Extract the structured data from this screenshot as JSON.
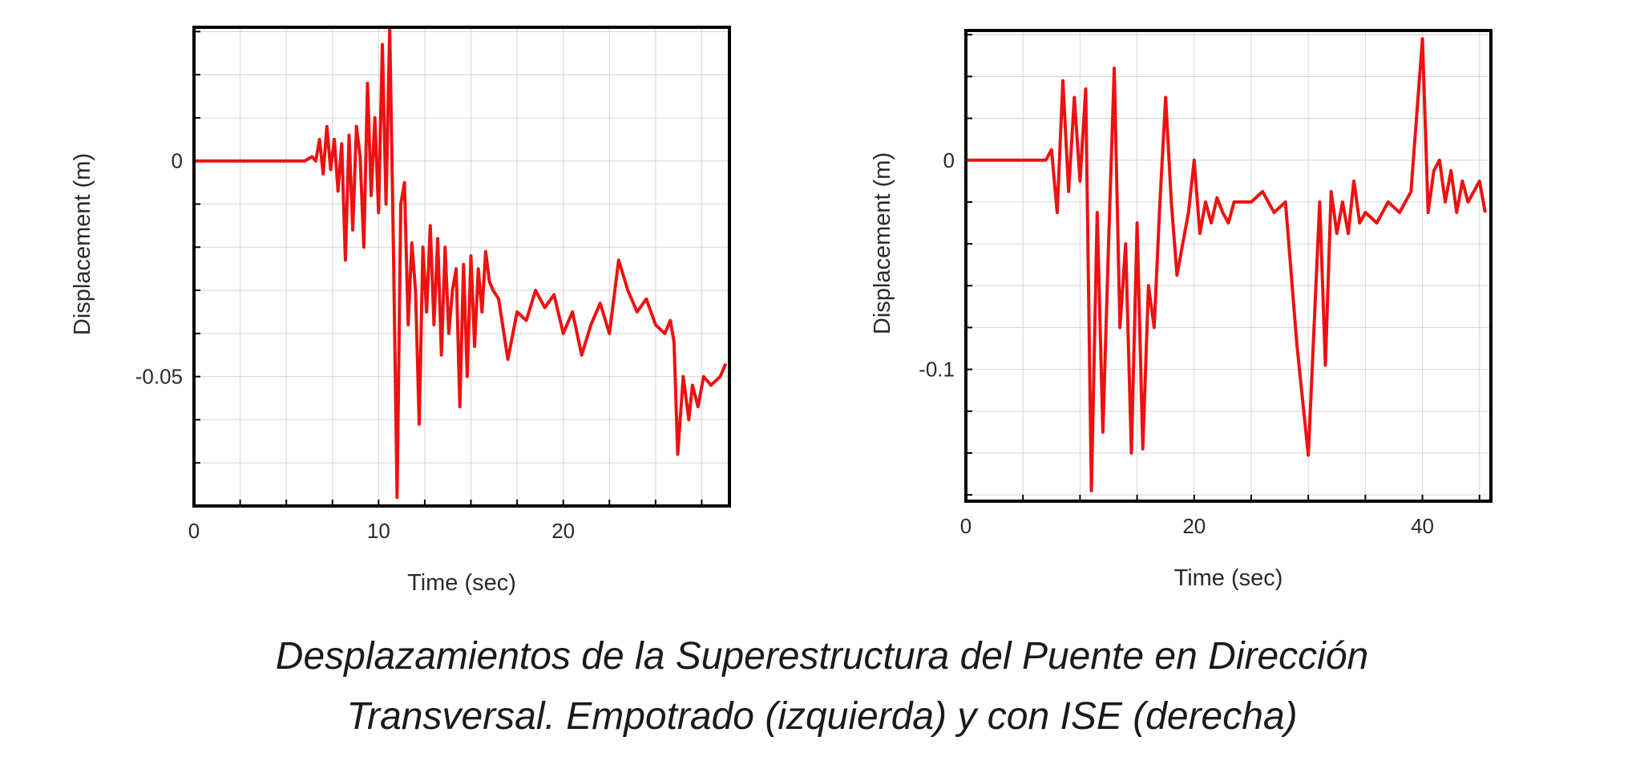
{
  "caption": {
    "line1": "Desplazamientos de la Superestructura del Puente en Dirección",
    "line2": "Transversal. Empotrado (izquierda) y con ISE (derecha)"
  },
  "colors": {
    "series": "#ee1111",
    "grid": "#d6d6d6",
    "frame": "#000000"
  },
  "chart_data": [
    {
      "type": "line",
      "title": "",
      "xlabel": "Time (sec)",
      "ylabel": "Displacement (m)",
      "xlim": [
        0,
        29
      ],
      "ylim": [
        -0.08,
        0.031
      ],
      "xticks": [
        0,
        10,
        20
      ],
      "xtick_labels": [
        "0",
        "10",
        "20"
      ],
      "yticks": [
        0,
        -0.05
      ],
      "ytick_labels": [
        "0",
        "-0.05"
      ],
      "grid": true,
      "series": [
        {
          "name": "Empotrado",
          "x": [
            0,
            6.0,
            6.4,
            6.6,
            6.8,
            7.0,
            7.2,
            7.4,
            7.6,
            7.8,
            8.0,
            8.2,
            8.4,
            8.6,
            8.8,
            9.0,
            9.2,
            9.4,
            9.6,
            9.8,
            10.0,
            10.2,
            10.4,
            10.6,
            10.8,
            11.0,
            11.2,
            11.4,
            11.6,
            11.8,
            12.0,
            12.2,
            12.4,
            12.6,
            12.8,
            13.0,
            13.2,
            13.4,
            13.6,
            13.8,
            14.0,
            14.2,
            14.4,
            14.6,
            14.8,
            15.0,
            15.2,
            15.4,
            15.6,
            15.8,
            16.0,
            16.2,
            16.5,
            17.0,
            17.5,
            18.0,
            18.5,
            19.0,
            19.5,
            20.0,
            20.5,
            21.0,
            21.5,
            22.0,
            22.5,
            23.0,
            23.5,
            24.0,
            24.5,
            25.0,
            25.5,
            25.8,
            26.0,
            26.2,
            26.5,
            26.8,
            27.0,
            27.3,
            27.6,
            28.0,
            28.5,
            28.8
          ],
          "values": [
            0,
            0,
            0.001,
            0,
            0.005,
            -0.003,
            0.008,
            -0.002,
            0.005,
            -0.007,
            0.004,
            -0.023,
            0.006,
            -0.016,
            0.008,
            0.001,
            -0.02,
            0.018,
            -0.008,
            0.01,
            -0.012,
            0.027,
            -0.01,
            0.031,
            -0.02,
            -0.078,
            -0.01,
            -0.005,
            -0.038,
            -0.019,
            -0.03,
            -0.061,
            -0.02,
            -0.035,
            -0.015,
            -0.038,
            -0.018,
            -0.045,
            -0.02,
            -0.04,
            -0.03,
            -0.025,
            -0.057,
            -0.024,
            -0.05,
            -0.022,
            -0.043,
            -0.025,
            -0.035,
            -0.021,
            -0.028,
            -0.03,
            -0.032,
            -0.046,
            -0.035,
            -0.037,
            -0.03,
            -0.034,
            -0.031,
            -0.04,
            -0.035,
            -0.045,
            -0.038,
            -0.033,
            -0.04,
            -0.023,
            -0.03,
            -0.035,
            -0.032,
            -0.038,
            -0.04,
            -0.037,
            -0.042,
            -0.068,
            -0.05,
            -0.06,
            -0.052,
            -0.057,
            -0.05,
            -0.052,
            -0.05,
            -0.047
          ]
        }
      ]
    },
    {
      "type": "line",
      "title": "",
      "xlabel": "Time (sec)",
      "ylabel": "Displacement (m)",
      "xlim": [
        0,
        46
      ],
      "ylim": [
        -0.163,
        0.062
      ],
      "xticks": [
        0,
        20,
        40
      ],
      "xtick_labels": [
        "0",
        "20",
        "40"
      ],
      "yticks": [
        0,
        -0.1
      ],
      "ytick_labels": [
        "0",
        "-0.1"
      ],
      "grid": true,
      "series": [
        {
          "name": "Con ISE",
          "x": [
            0,
            7.0,
            7.5,
            8.0,
            8.5,
            9.0,
            9.5,
            10.0,
            10.5,
            11.0,
            11.5,
            12.0,
            12.5,
            13.0,
            13.5,
            14.0,
            14.5,
            15.0,
            15.5,
            16.0,
            16.5,
            17.0,
            17.5,
            18.0,
            18.5,
            19.0,
            19.5,
            20.0,
            20.5,
            21.0,
            21.5,
            22.0,
            22.5,
            23.0,
            23.5,
            24.0,
            25.0,
            26.0,
            27.0,
            28.0,
            29.0,
            30.0,
            31.0,
            31.5,
            32.0,
            32.5,
            33.0,
            33.5,
            34.0,
            34.5,
            35.0,
            36.0,
            37.0,
            38.0,
            39.0,
            40.0,
            40.5,
            41.0,
            41.5,
            42.0,
            42.5,
            43.0,
            43.5,
            44.0,
            45.0,
            45.5
          ],
          "values": [
            0,
            0,
            0.005,
            -0.025,
            0.038,
            -0.015,
            0.03,
            -0.01,
            0.034,
            -0.158,
            -0.025,
            -0.13,
            -0.04,
            0.044,
            -0.08,
            -0.04,
            -0.14,
            -0.03,
            -0.138,
            -0.06,
            -0.08,
            -0.02,
            0.03,
            -0.02,
            -0.055,
            -0.04,
            -0.025,
            0.0,
            -0.035,
            -0.02,
            -0.03,
            -0.018,
            -0.025,
            -0.03,
            -0.02,
            -0.02,
            -0.02,
            -0.015,
            -0.025,
            -0.02,
            -0.088,
            -0.141,
            -0.02,
            -0.098,
            -0.015,
            -0.035,
            -0.02,
            -0.035,
            -0.01,
            -0.03,
            -0.025,
            -0.03,
            -0.02,
            -0.025,
            -0.015,
            0.058,
            -0.025,
            -0.005,
            0.0,
            -0.02,
            -0.005,
            -0.025,
            -0.01,
            -0.02,
            -0.01,
            -0.025
          ]
        }
      ]
    }
  ]
}
